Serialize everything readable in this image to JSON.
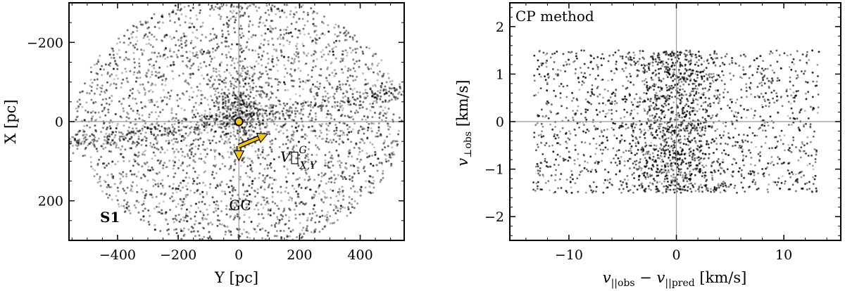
{
  "chart_data": [
    {
      "type": "scatter",
      "panel_label": "S1",
      "xlabel": "Y [pc]",
      "ylabel": "X [pc]",
      "xlim": [
        -560,
        545
      ],
      "ylim": [
        300,
        -300
      ],
      "y_inverted": true,
      "xticks": [
        {
          "value": -400,
          "label": "−400"
        },
        {
          "value": -200,
          "label": "−200"
        },
        {
          "value": 0,
          "label": "0"
        },
        {
          "value": 200,
          "label": "200"
        },
        {
          "value": 400,
          "label": "400"
        }
      ],
      "yticks": [
        {
          "value": -200,
          "label": "−200"
        },
        {
          "value": 0,
          "label": "0"
        },
        {
          "value": 200,
          "label": "200"
        }
      ],
      "grid": false,
      "reference_lines": {
        "x": 0,
        "y": 0
      },
      "marker": {
        "x": 0,
        "y": 0,
        "color": "#f5c400"
      },
      "annotations": {
        "gc_label": "GC",
        "velocity_label": "V⃗",
        "velocity_superscript": "G",
        "velocity_subscript": "X,Y",
        "gc_arrow_end": {
          "x": 0,
          "y": 88
        },
        "velocity_arrow_end": {
          "x": 95,
          "y": 40
        },
        "arrow_color": "#f5c400"
      },
      "point_distribution": {
        "count": 4200,
        "disk_halfwidth_y": 540,
        "disk_halfheight_x": 300,
        "color": "#000000"
      }
    },
    {
      "type": "scatter",
      "title": "CP method",
      "xlabel": "v||obs − v||pred [km/s]",
      "ylabel": "v⊥obs [km/s]",
      "xlim": [
        -15.5,
        15.3
      ],
      "ylim": [
        -2.5,
        2.5
      ],
      "xticks": [
        {
          "value": -10,
          "label": "−10"
        },
        {
          "value": 0,
          "label": "0"
        },
        {
          "value": 10,
          "label": "10"
        }
      ],
      "yticks": [
        {
          "value": -2,
          "label": "−2"
        },
        {
          "value": -1,
          "label": "−1"
        },
        {
          "value": 0,
          "label": "0"
        },
        {
          "value": 1,
          "label": "1"
        },
        {
          "value": 2,
          "label": "2"
        }
      ],
      "grid": false,
      "reference_lines": {
        "x": 0,
        "y": 0
      },
      "point_distribution": {
        "count": 4200,
        "x_range": [
          -13.5,
          13.5
        ],
        "y_range": [
          -1.5,
          1.5
        ],
        "color": "#000000"
      }
    }
  ]
}
